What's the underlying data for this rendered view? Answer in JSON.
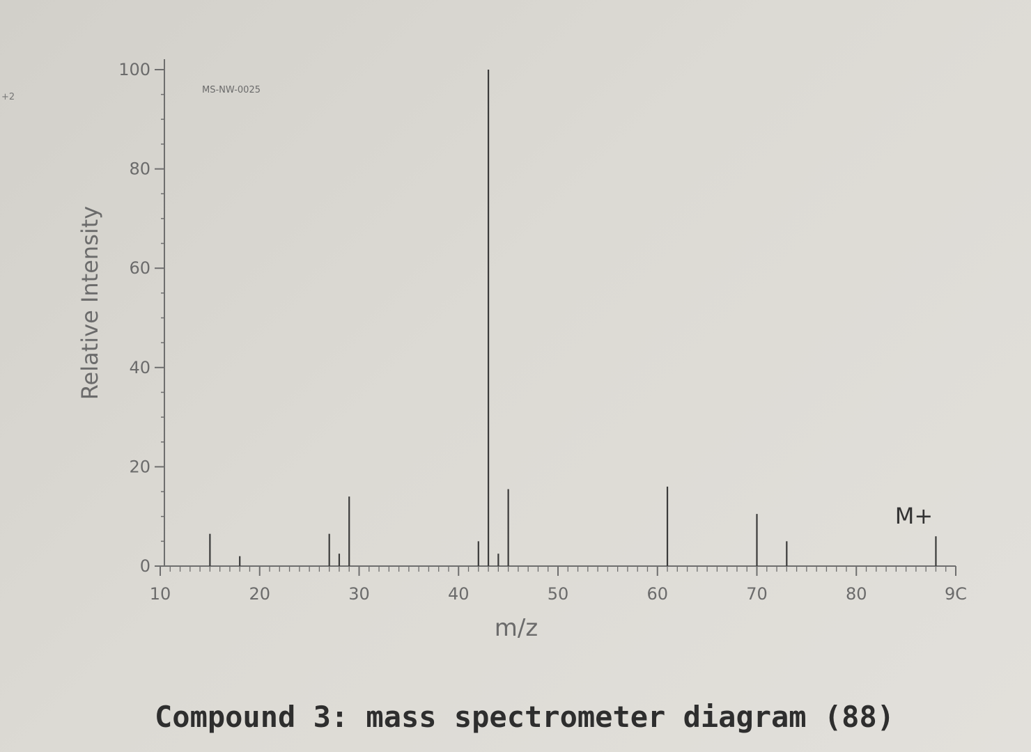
{
  "page": {
    "edge_mark": "+2",
    "caption": "Compound 3: mass spectrometer diagram (88)"
  },
  "chart_data": {
    "type": "bar",
    "code_label": "MS-NW-0025",
    "xlabel": "m/z",
    "ylabel": "Relative Intensity",
    "xlim": [
      10,
      90
    ],
    "ylim": [
      0,
      100
    ],
    "x_ticks": [
      "10",
      "20",
      "30",
      "40",
      "50",
      "60",
      "70",
      "80",
      "9C"
    ],
    "y_ticks": [
      "0",
      "20",
      "40",
      "60",
      "80",
      "100"
    ],
    "annotation": "M+",
    "peaks": [
      {
        "x": 15,
        "y": 6.5
      },
      {
        "x": 18,
        "y": 2
      },
      {
        "x": 27,
        "y": 6.5
      },
      {
        "x": 28,
        "y": 2.5
      },
      {
        "x": 29,
        "y": 14
      },
      {
        "x": 42,
        "y": 5
      },
      {
        "x": 43,
        "y": 100
      },
      {
        "x": 44,
        "y": 2.5
      },
      {
        "x": 45,
        "y": 15.5
      },
      {
        "x": 61,
        "y": 16
      },
      {
        "x": 70,
        "y": 10.5
      },
      {
        "x": 73,
        "y": 5
      },
      {
        "x": 88,
        "y": 6
      }
    ],
    "colors": {
      "axis": "#6e6e6e",
      "peak": "#3a3a3a"
    }
  }
}
